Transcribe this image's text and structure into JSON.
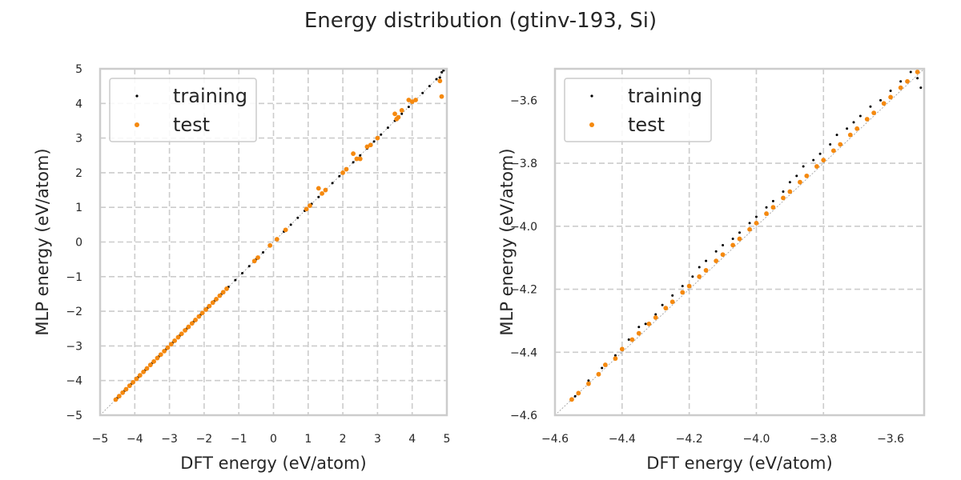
{
  "title": "Energy distribution (gtinv-193, Si)",
  "colors": {
    "training": "#000000",
    "test": "#f5890f"
  },
  "chart_data": [
    {
      "type": "scatter",
      "xlabel": "DFT energy (eV/atom)",
      "ylabel": "MLP energy (eV/atom)",
      "xlim": [
        -5,
        5
      ],
      "ylim": [
        -5,
        5
      ],
      "xticks": [
        -5,
        -4,
        -3,
        -2,
        -1,
        0,
        1,
        2,
        3,
        4,
        5
      ],
      "yticks": [
        -5,
        -4,
        -3,
        -2,
        -1,
        0,
        1,
        2,
        3,
        4,
        5
      ],
      "xtick_labels": [
        "−5",
        "−4",
        "−3",
        "−2",
        "−1",
        "0",
        "1",
        "2",
        "3",
        "4",
        "5"
      ],
      "ytick_labels": [
        "−5",
        "−4",
        "−3",
        "−2",
        "−1",
        "0",
        "1",
        "2",
        "3",
        "4",
        "5"
      ],
      "grid": true,
      "legend": {
        "placement": "top-left",
        "entries": [
          "training",
          "test"
        ]
      },
      "series": [
        {
          "name": "training",
          "points": [
            [
              -4.5,
              -4.5
            ],
            [
              -4.3,
              -4.3
            ],
            [
              -4.1,
              -4.1
            ],
            [
              -3.9,
              -3.9
            ],
            [
              -3.7,
              -3.7
            ],
            [
              -3.5,
              -3.5
            ],
            [
              -3.3,
              -3.3
            ],
            [
              -3.1,
              -3.1
            ],
            [
              -2.9,
              -2.9
            ],
            [
              -2.7,
              -2.7
            ],
            [
              -2.5,
              -2.5
            ],
            [
              -2.3,
              -2.3
            ],
            [
              -2.1,
              -2.1
            ],
            [
              -1.9,
              -1.9
            ],
            [
              -1.7,
              -1.7
            ],
            [
              -1.5,
              -1.5
            ],
            [
              -1.3,
              -1.3
            ],
            [
              -1.1,
              -1.1
            ],
            [
              -0.9,
              -0.9
            ],
            [
              -0.7,
              -0.7
            ],
            [
              -0.5,
              -0.5
            ],
            [
              -0.3,
              -0.3
            ],
            [
              -0.1,
              -0.1
            ],
            [
              0.1,
              0.1
            ],
            [
              0.3,
              0.3
            ],
            [
              0.5,
              0.5
            ],
            [
              0.7,
              0.7
            ],
            [
              0.9,
              0.9
            ],
            [
              1.1,
              1.1
            ],
            [
              1.3,
              1.3
            ],
            [
              1.5,
              1.5
            ],
            [
              1.7,
              1.7
            ],
            [
              1.9,
              1.9
            ],
            [
              2.1,
              2.1
            ],
            [
              2.3,
              2.3
            ],
            [
              2.5,
              2.5
            ],
            [
              2.7,
              2.7
            ],
            [
              2.9,
              2.9
            ],
            [
              3.1,
              3.1
            ],
            [
              3.3,
              3.3
            ],
            [
              3.5,
              3.5
            ],
            [
              3.7,
              3.7
            ],
            [
              3.9,
              3.9
            ],
            [
              4.1,
              4.1
            ],
            [
              4.3,
              4.3
            ],
            [
              4.5,
              4.5
            ],
            [
              4.7,
              4.7
            ],
            [
              4.85,
              4.9
            ],
            [
              4.9,
              4.95
            ],
            [
              4.8,
              4.75
            ]
          ]
        },
        {
          "name": "test",
          "points": [
            [
              -4.55,
              -4.55
            ],
            [
              -4.45,
              -4.45
            ],
            [
              -4.35,
              -4.35
            ],
            [
              -4.25,
              -4.25
            ],
            [
              -4.15,
              -4.15
            ],
            [
              -4.05,
              -4.05
            ],
            [
              -3.95,
              -3.95
            ],
            [
              -3.85,
              -3.85
            ],
            [
              -3.75,
              -3.75
            ],
            [
              -3.65,
              -3.65
            ],
            [
              -3.55,
              -3.55
            ],
            [
              -3.45,
              -3.45
            ],
            [
              -3.35,
              -3.35
            ],
            [
              -3.25,
              -3.25
            ],
            [
              -3.15,
              -3.15
            ],
            [
              -3.05,
              -3.05
            ],
            [
              -2.95,
              -2.95
            ],
            [
              -2.85,
              -2.85
            ],
            [
              -2.75,
              -2.75
            ],
            [
              -2.65,
              -2.65
            ],
            [
              -2.55,
              -2.55
            ],
            [
              -2.45,
              -2.45
            ],
            [
              -2.35,
              -2.35
            ],
            [
              -2.25,
              -2.25
            ],
            [
              -2.15,
              -2.15
            ],
            [
              -2.05,
              -2.05
            ],
            [
              -1.95,
              -1.95
            ],
            [
              -1.85,
              -1.85
            ],
            [
              -1.75,
              -1.75
            ],
            [
              -1.65,
              -1.65
            ],
            [
              -1.55,
              -1.55
            ],
            [
              -1.45,
              -1.45
            ],
            [
              -1.35,
              -1.35
            ],
            [
              -0.55,
              -0.55
            ],
            [
              -0.45,
              -0.45
            ],
            [
              -0.1,
              -0.1
            ],
            [
              0.1,
              0.08
            ],
            [
              0.35,
              0.35
            ],
            [
              0.95,
              0.95
            ],
            [
              1.05,
              1.05
            ],
            [
              1.3,
              1.55
            ],
            [
              1.4,
              1.4
            ],
            [
              1.5,
              1.5
            ],
            [
              2.0,
              2.0
            ],
            [
              2.1,
              2.1
            ],
            [
              2.3,
              2.55
            ],
            [
              2.4,
              2.4
            ],
            [
              2.5,
              2.4
            ],
            [
              2.7,
              2.75
            ],
            [
              2.8,
              2.8
            ],
            [
              3.0,
              3.0
            ],
            [
              3.5,
              3.7
            ],
            [
              3.55,
              3.55
            ],
            [
              3.6,
              3.6
            ],
            [
              3.7,
              3.8
            ],
            [
              3.9,
              4.1
            ],
            [
              4.0,
              4.05
            ],
            [
              4.1,
              4.1
            ],
            [
              4.8,
              4.65
            ],
            [
              4.85,
              4.2
            ]
          ]
        }
      ]
    },
    {
      "type": "scatter",
      "xlabel": "DFT energy (eV/atom)",
      "ylabel": "MLP energy (eV/atom)",
      "xlim": [
        -4.6,
        -3.5
      ],
      "ylim": [
        -4.6,
        -3.5
      ],
      "xticks": [
        -4.6,
        -4.4,
        -4.2,
        -4.0,
        -3.8,
        -3.6
      ],
      "yticks": [
        -4.6,
        -4.4,
        -4.2,
        -4.0,
        -3.8,
        -3.6
      ],
      "xtick_labels": [
        "−4.6",
        "−4.4",
        "−4.2",
        "−4.0",
        "−3.8",
        "−3.6"
      ],
      "ytick_labels": [
        "−4.6",
        "−4.4",
        "−4.2",
        "−4.0",
        "−3.8",
        "−3.6"
      ],
      "grid": true,
      "legend": {
        "placement": "top-left",
        "entries": [
          "training",
          "test"
        ]
      },
      "series": [
        {
          "name": "training",
          "points": [
            [
              -4.54,
              -4.54
            ],
            [
              -4.5,
              -4.49
            ],
            [
              -4.46,
              -4.45
            ],
            [
              -4.42,
              -4.41
            ],
            [
              -4.38,
              -4.36
            ],
            [
              -4.35,
              -4.32
            ],
            [
              -4.33,
              -4.31
            ],
            [
              -4.3,
              -4.28
            ],
            [
              -4.28,
              -4.25
            ],
            [
              -4.25,
              -4.22
            ],
            [
              -4.22,
              -4.19
            ],
            [
              -4.19,
              -4.16
            ],
            [
              -4.17,
              -4.13
            ],
            [
              -4.15,
              -4.11
            ],
            [
              -4.12,
              -4.08
            ],
            [
              -4.1,
              -4.06
            ],
            [
              -4.07,
              -4.04
            ],
            [
              -4.05,
              -4.02
            ],
            [
              -4.02,
              -3.99
            ],
            [
              -4.0,
              -3.97
            ],
            [
              -3.97,
              -3.94
            ],
            [
              -3.95,
              -3.92
            ],
            [
              -3.92,
              -3.89
            ],
            [
              -3.9,
              -3.86
            ],
            [
              -3.88,
              -3.84
            ],
            [
              -3.86,
              -3.81
            ],
            [
              -3.83,
              -3.79
            ],
            [
              -3.81,
              -3.77
            ],
            [
              -3.78,
              -3.74
            ],
            [
              -3.76,
              -3.71
            ],
            [
              -3.73,
              -3.69
            ],
            [
              -3.71,
              -3.67
            ],
            [
              -3.69,
              -3.65
            ],
            [
              -3.66,
              -3.62
            ],
            [
              -3.63,
              -3.6
            ],
            [
              -3.6,
              -3.57
            ],
            [
              -3.57,
              -3.54
            ],
            [
              -3.54,
              -3.51
            ],
            [
              -3.52,
              -3.53
            ],
            [
              -3.51,
              -3.56
            ]
          ]
        },
        {
          "name": "test",
          "points": [
            [
              -4.55,
              -4.55
            ],
            [
              -4.53,
              -4.53
            ],
            [
              -4.5,
              -4.5
            ],
            [
              -4.47,
              -4.47
            ],
            [
              -4.45,
              -4.44
            ],
            [
              -4.42,
              -4.42
            ],
            [
              -4.4,
              -4.39
            ],
            [
              -4.37,
              -4.36
            ],
            [
              -4.35,
              -4.34
            ],
            [
              -4.32,
              -4.31
            ],
            [
              -4.3,
              -4.29
            ],
            [
              -4.27,
              -4.26
            ],
            [
              -4.25,
              -4.24
            ],
            [
              -4.22,
              -4.21
            ],
            [
              -4.2,
              -4.19
            ],
            [
              -4.17,
              -4.16
            ],
            [
              -4.15,
              -4.14
            ],
            [
              -4.12,
              -4.11
            ],
            [
              -4.1,
              -4.09
            ],
            [
              -4.07,
              -4.06
            ],
            [
              -4.05,
              -4.04
            ],
            [
              -4.02,
              -4.01
            ],
            [
              -4.0,
              -3.99
            ],
            [
              -3.97,
              -3.96
            ],
            [
              -3.95,
              -3.94
            ],
            [
              -3.92,
              -3.91
            ],
            [
              -3.9,
              -3.89
            ],
            [
              -3.87,
              -3.86
            ],
            [
              -3.85,
              -3.84
            ],
            [
              -3.82,
              -3.81
            ],
            [
              -3.8,
              -3.79
            ],
            [
              -3.77,
              -3.76
            ],
            [
              -3.75,
              -3.74
            ],
            [
              -3.72,
              -3.71
            ],
            [
              -3.7,
              -3.69
            ],
            [
              -3.67,
              -3.66
            ],
            [
              -3.65,
              -3.64
            ],
            [
              -3.62,
              -3.61
            ],
            [
              -3.6,
              -3.59
            ],
            [
              -3.57,
              -3.56
            ],
            [
              -3.55,
              -3.54
            ],
            [
              -3.52,
              -3.51
            ]
          ]
        }
      ]
    }
  ]
}
